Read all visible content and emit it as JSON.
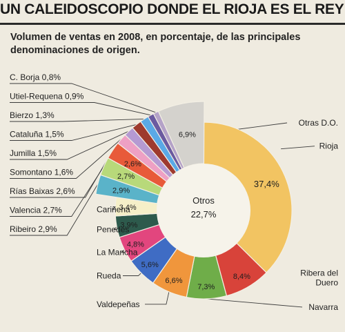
{
  "header": {
    "title": "UN CALEIDOSCOPIO DONDE EL RIOJA ES EL REY",
    "subtitle": "Volumen de ventas en 2008, en porcentaje, de las principales denominaciones de origen."
  },
  "center_label": {
    "name": "Otros",
    "value": "22,7%"
  },
  "colors": {
    "background": "#efebe0",
    "leader": "#3a3a3a"
  },
  "chart_data": {
    "type": "pie",
    "title": "Volumen de ventas en 2008, en porcentaje, de las principales denominaciones de origen.",
    "unit": "%",
    "main_ring": [
      {
        "name": "Rioja",
        "value": 37.4,
        "label": "37,4%",
        "color": "#f2c462"
      },
      {
        "name": "Ribera del Duero",
        "value": 8.4,
        "label": "8,4%",
        "color": "#d8433a"
      },
      {
        "name": "Navarra",
        "value": 7.3,
        "label": "7,3%",
        "color": "#6fad49"
      },
      {
        "name": "Valdepeñas",
        "value": 6.6,
        "label": "6,6%",
        "color": "#f0963c"
      },
      {
        "name": "Rueda",
        "value": 5.6,
        "label": "5,6%",
        "color": "#3f6cc4"
      },
      {
        "name": "La Mancha",
        "value": 4.8,
        "label": "4,8%",
        "color": "#e2467e"
      },
      {
        "name": "Penedés",
        "value": 3.9,
        "label": "3,9%",
        "color": "#2d5a4c"
      },
      {
        "name": "Cariñena",
        "value": 3.4,
        "label": "3,4%",
        "color": "#f5efc8"
      }
    ],
    "outer_ring": [
      {
        "name": "Ribeiro",
        "value": 2.9,
        "label": "2,9%",
        "color": "#5ab3c9"
      },
      {
        "name": "Valencia",
        "value": 2.7,
        "label": "2,7%",
        "color": "#b8d97a"
      },
      {
        "name": "Rías Baixas",
        "value": 2.6,
        "label": "2,6%",
        "color": "#e85a3a"
      },
      {
        "name": "Somontano",
        "value": 1.6,
        "label": "1,6%",
        "color": "#eea0c4"
      },
      {
        "name": "Jumilla",
        "value": 1.5,
        "label": "1,5%",
        "color": "#b59ad2"
      },
      {
        "name": "Cataluña",
        "value": 1.5,
        "label": "1,5%",
        "color": "#9e3a2e"
      },
      {
        "name": "Bierzo",
        "value": 1.3,
        "label": "1,3%",
        "color": "#5aa9e6"
      },
      {
        "name": "Utiel-Requena",
        "value": 0.9,
        "label": "0,9%",
        "color": "#6b5aa0"
      },
      {
        "name": "C. Borja",
        "value": 0.8,
        "label": "0,8%",
        "color": "#b4a2c8"
      },
      {
        "name": "Otras D.O.",
        "value": 6.9,
        "label": "6,9%",
        "color": "#d4d2cd"
      }
    ]
  }
}
